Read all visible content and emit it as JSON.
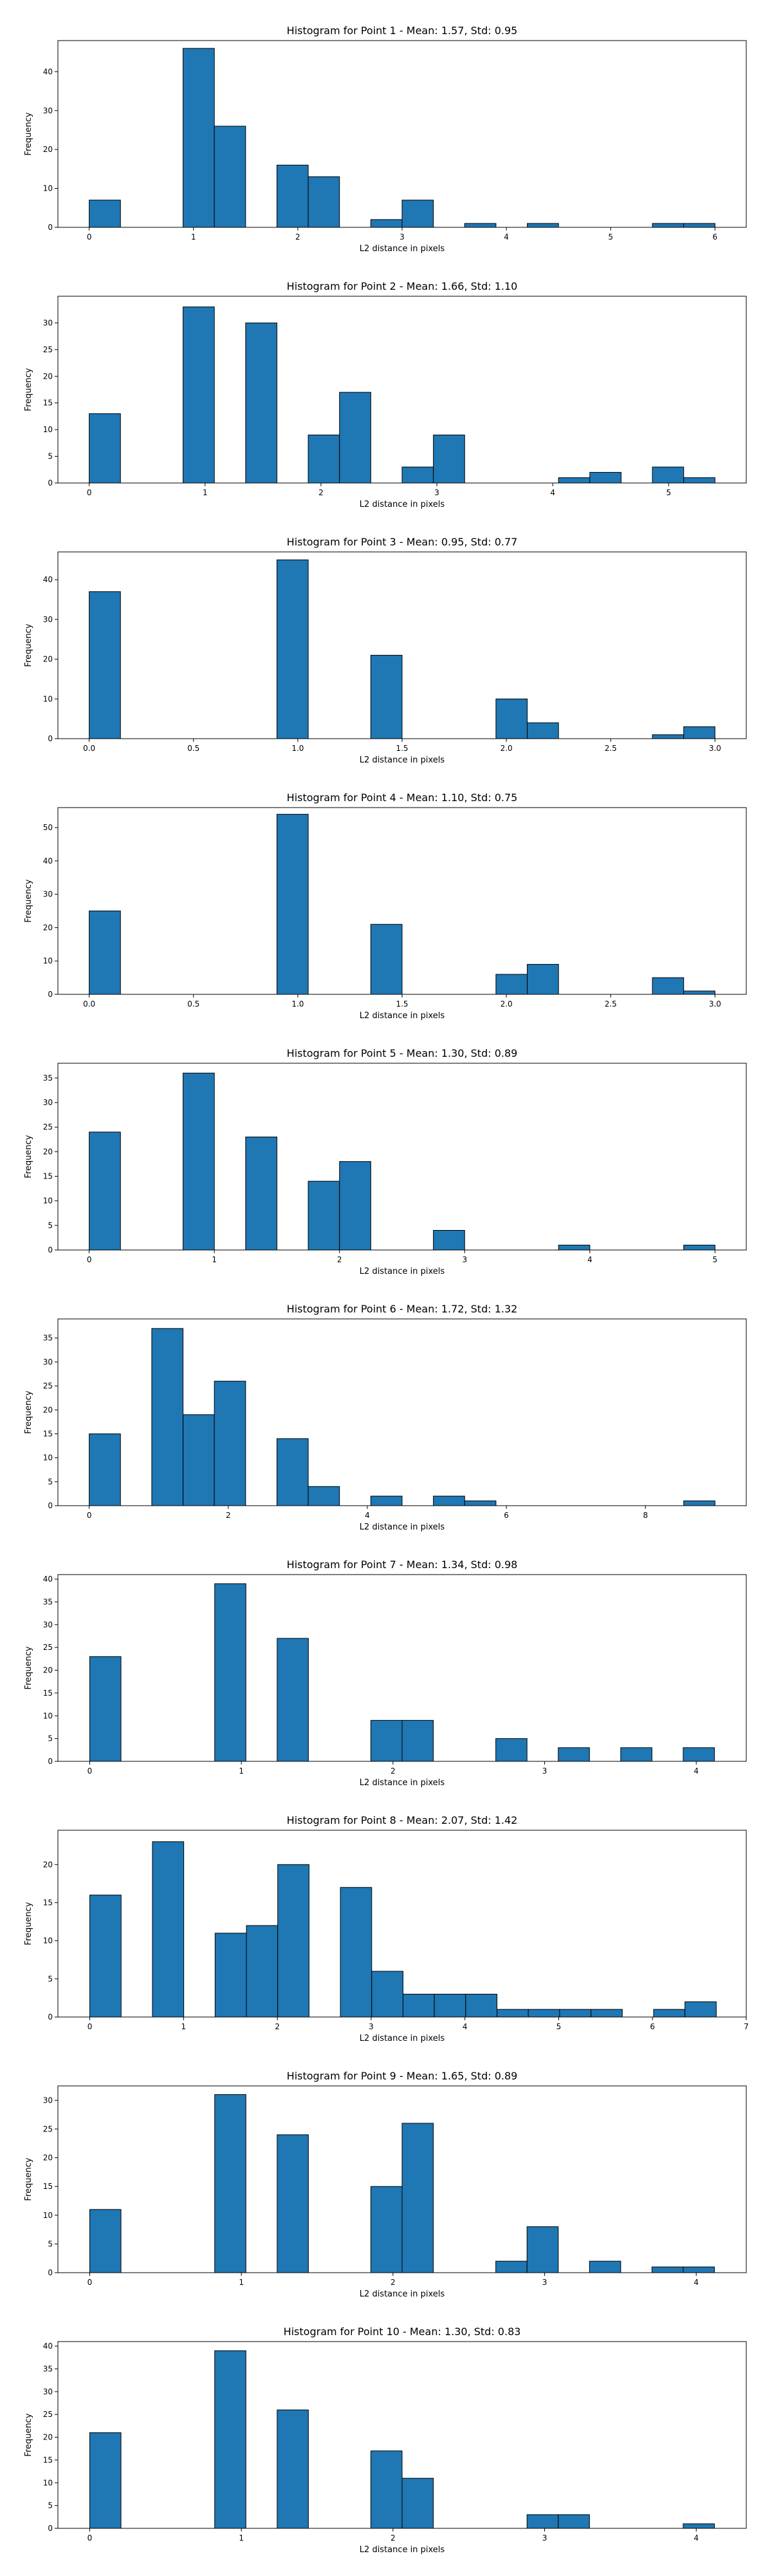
{
  "bar_color": "#1f77b4",
  "edge_color": "#000000",
  "chart_data": [
    {
      "type": "bar",
      "title": "Histogram for Point 1 - Mean: 1.57, Std: 0.95",
      "xlabel": "L2 distance in pixels",
      "ylabel": "Frequency",
      "xlim": [
        -0.3,
        6.3
      ],
      "ylim": [
        0,
        48
      ],
      "xticks": [
        0,
        1,
        2,
        3,
        4,
        5,
        6
      ],
      "yticks": [
        0,
        10,
        20,
        30,
        40
      ],
      "bin_start": 0,
      "bin_width": 0.3,
      "values": [
        7,
        0,
        0,
        46,
        26,
        0,
        16,
        13,
        0,
        2,
        7,
        0,
        1,
        0,
        1,
        0,
        0,
        0,
        1,
        1
      ]
    },
    {
      "type": "bar",
      "title": "Histogram for Point 2 - Mean: 1.66, Std: 1.10",
      "xlabel": "L2 distance in pixels",
      "ylabel": "Frequency",
      "xlim": [
        -0.27,
        5.67
      ],
      "ylim": [
        0,
        35
      ],
      "xticks": [
        0,
        1,
        2,
        3,
        4,
        5
      ],
      "yticks": [
        0,
        5,
        10,
        15,
        20,
        25,
        30
      ],
      "bin_start": 0,
      "bin_width": 0.27,
      "values": [
        13,
        0,
        0,
        33,
        0,
        30,
        0,
        9,
        17,
        0,
        3,
        9,
        0,
        0,
        0,
        1,
        2,
        0,
        3,
        1
      ]
    },
    {
      "type": "bar",
      "title": "Histogram for Point 3 - Mean: 0.95, Std: 0.77",
      "xlabel": "L2 distance in pixels",
      "ylabel": "Frequency",
      "xlim": [
        -0.15,
        3.15
      ],
      "ylim": [
        0,
        47
      ],
      "xticks": [
        0.0,
        0.5,
        1.0,
        1.5,
        2.0,
        2.5,
        3.0
      ],
      "yticks": [
        0,
        10,
        20,
        30,
        40
      ],
      "bin_start": 0,
      "bin_width": 0.15,
      "values": [
        37,
        0,
        0,
        0,
        0,
        0,
        45,
        0,
        0,
        21,
        0,
        0,
        0,
        10,
        4,
        0,
        0,
        0,
        1,
        3
      ]
    },
    {
      "type": "bar",
      "title": "Histogram for Point 4 - Mean: 1.10, Std: 0.75",
      "xlabel": "L2 distance in pixels",
      "ylabel": "Frequency",
      "xlim": [
        -0.15,
        3.15
      ],
      "ylim": [
        0,
        56
      ],
      "xticks": [
        0.0,
        0.5,
        1.0,
        1.5,
        2.0,
        2.5,
        3.0
      ],
      "yticks": [
        0,
        10,
        20,
        30,
        40,
        50
      ],
      "bin_start": 0,
      "bin_width": 0.15,
      "values": [
        25,
        0,
        0,
        0,
        0,
        0,
        54,
        0,
        0,
        21,
        0,
        0,
        0,
        6,
        9,
        0,
        0,
        0,
        5,
        1
      ]
    },
    {
      "type": "bar",
      "title": "Histogram for Point 5 - Mean: 1.30, Std: 0.89",
      "xlabel": "L2 distance in pixels",
      "ylabel": "Frequency",
      "xlim": [
        -0.25,
        5.25
      ],
      "ylim": [
        0,
        38
      ],
      "xticks": [
        0,
        1,
        2,
        3,
        4,
        5
      ],
      "yticks": [
        0,
        5,
        10,
        15,
        20,
        25,
        30,
        35
      ],
      "bin_start": 0,
      "bin_width": 0.25,
      "values": [
        24,
        0,
        0,
        36,
        0,
        23,
        0,
        14,
        18,
        0,
        0,
        4,
        0,
        0,
        0,
        1,
        0,
        0,
        0,
        1
      ]
    },
    {
      "type": "bar",
      "title": "Histogram for Point 6 - Mean: 1.72, Std: 1.32",
      "xlabel": "L2 distance in pixels",
      "ylabel": "Frequency",
      "xlim": [
        -0.45,
        9.45
      ],
      "ylim": [
        0,
        39
      ],
      "xticks": [
        0,
        2,
        4,
        6,
        8
      ],
      "yticks": [
        0,
        5,
        10,
        15,
        20,
        25,
        30,
        35
      ],
      "bin_start": 0,
      "bin_width": 0.45,
      "values": [
        15,
        0,
        37,
        19,
        26,
        0,
        14,
        4,
        0,
        2,
        0,
        2,
        1,
        0,
        0,
        0,
        0,
        0,
        0,
        1
      ]
    },
    {
      "type": "bar",
      "title": "Histogram for Point 7 - Mean: 1.34, Std: 0.98",
      "xlabel": "L2 distance in pixels",
      "ylabel": "Frequency",
      "xlim": [
        -0.21,
        4.33
      ],
      "ylim": [
        0,
        41
      ],
      "xticks": [
        0,
        1,
        2,
        3,
        4
      ],
      "yticks": [
        0,
        5,
        10,
        15,
        20,
        25,
        30,
        35,
        40
      ],
      "bin_start": 0,
      "bin_width": 0.206,
      "values": [
        23,
        0,
        0,
        0,
        39,
        0,
        27,
        0,
        0,
        9,
        9,
        0,
        0,
        5,
        0,
        3,
        0,
        3,
        0,
        3
      ]
    },
    {
      "type": "bar",
      "title": "Histogram for Point 8 - Mean: 2.07, Std: 1.42",
      "xlabel": "L2 distance in pixels",
      "ylabel": "Frequency",
      "xlim": [
        -0.34,
        7.0
      ],
      "ylim": [
        0,
        24.5
      ],
      "xticks": [
        0,
        1,
        2,
        3,
        4,
        5,
        6,
        7
      ],
      "yticks": [
        0,
        5,
        10,
        15,
        20
      ],
      "bin_start": 0,
      "bin_width": 0.334,
      "values": [
        16,
        0,
        23,
        0,
        11,
        12,
        20,
        0,
        17,
        6,
        3,
        3,
        3,
        1,
        1,
        1,
        1,
        0,
        1,
        2
      ]
    },
    {
      "type": "bar",
      "title": "Histogram for Point 9 - Mean: 1.65, Std: 0.89",
      "xlabel": "L2 distance in pixels",
      "ylabel": "Frequency",
      "xlim": [
        -0.21,
        4.33
      ],
      "ylim": [
        0,
        32.5
      ],
      "xticks": [
        0,
        1,
        2,
        3,
        4
      ],
      "yticks": [
        0,
        5,
        10,
        15,
        20,
        25,
        30
      ],
      "bin_start": 0,
      "bin_width": 0.206,
      "values": [
        11,
        0,
        0,
        0,
        31,
        0,
        24,
        0,
        0,
        15,
        26,
        0,
        0,
        2,
        8,
        0,
        2,
        0,
        1,
        1
      ]
    },
    {
      "type": "bar",
      "title": "Histogram for Point 10 - Mean: 1.30, Std: 0.83",
      "xlabel": "L2 distance in pixels",
      "ylabel": "Frequency",
      "xlim": [
        -0.21,
        4.33
      ],
      "ylim": [
        0,
        41
      ],
      "xticks": [
        0,
        1,
        2,
        3,
        4
      ],
      "yticks": [
        0,
        5,
        10,
        15,
        20,
        25,
        30,
        35,
        40
      ],
      "bin_start": 0,
      "bin_width": 0.206,
      "values": [
        21,
        0,
        0,
        0,
        39,
        0,
        26,
        0,
        0,
        17,
        11,
        0,
        0,
        0,
        3,
        3,
        0,
        0,
        0,
        1
      ]
    }
  ]
}
